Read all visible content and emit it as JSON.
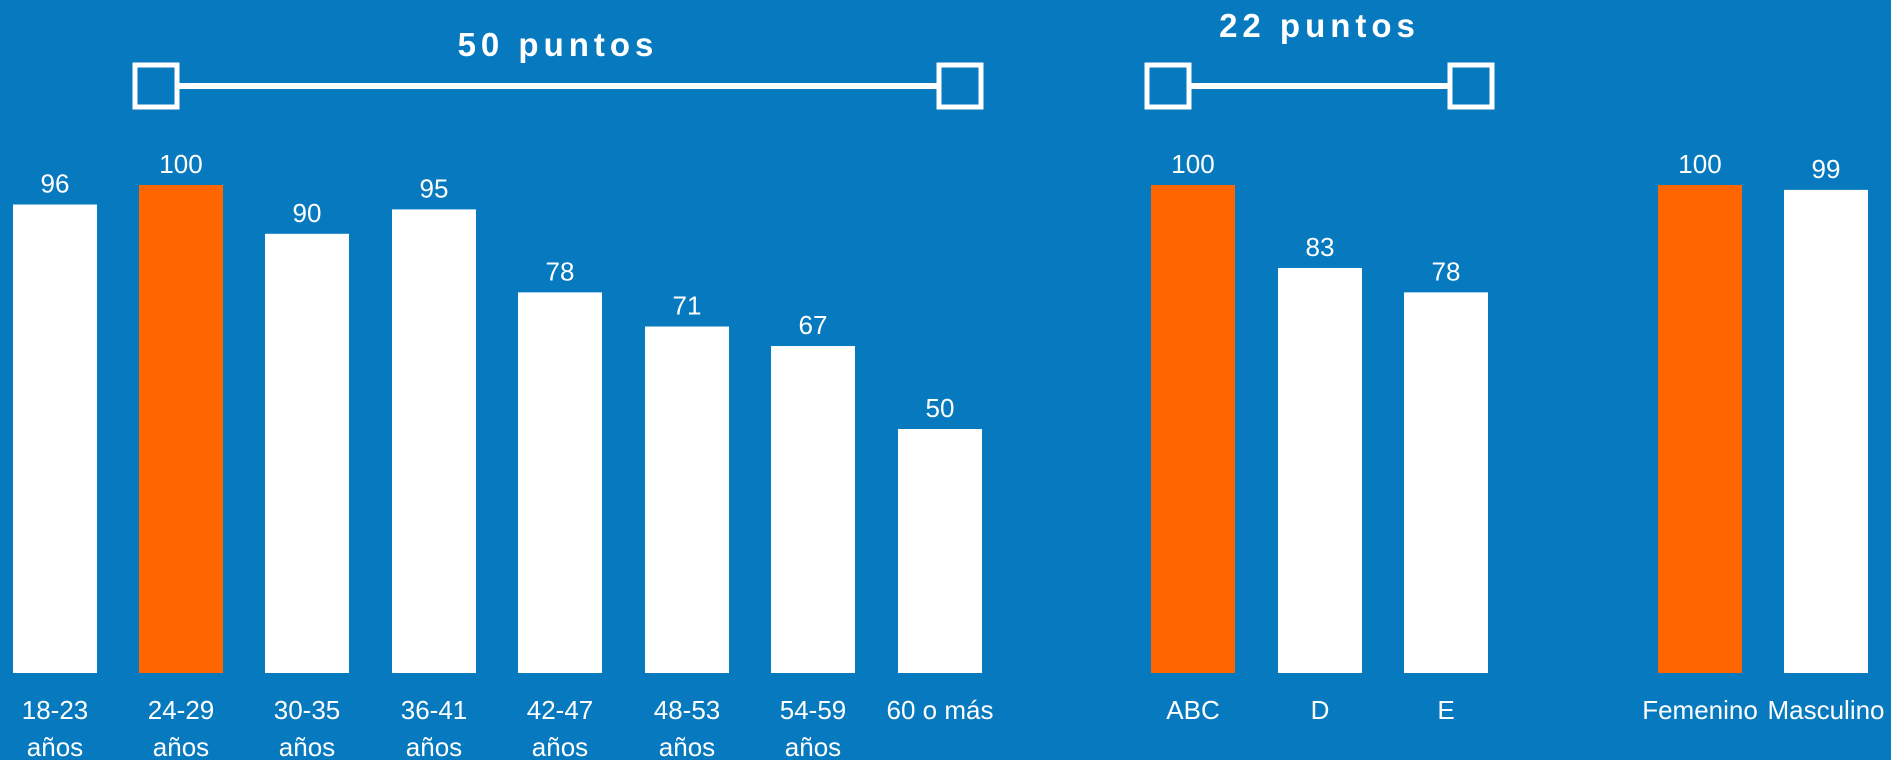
{
  "colors": {
    "background": "#0779BF",
    "bar": "#FFFFFF",
    "highlight": "#FF6600"
  },
  "chart_data": [
    {
      "type": "bar",
      "categories": [
        [
          "18-23",
          "años"
        ],
        [
          "24-29",
          "años"
        ],
        [
          "30-35",
          "años"
        ],
        [
          "36-41",
          "años"
        ],
        [
          "42-47",
          "años"
        ],
        [
          "48-53",
          "años"
        ],
        [
          "54-59",
          "años"
        ],
        [
          "60 o más"
        ]
      ],
      "values": [
        96,
        100,
        90,
        95,
        78,
        71,
        67,
        50
      ],
      "highlight_index": 1,
      "annotation": {
        "text": "50 puntos",
        "from_index": 1,
        "to_index": 7
      },
      "ylim": [
        0,
        100
      ]
    },
    {
      "type": "bar",
      "categories": [
        [
          "ABC"
        ],
        [
          "D"
        ],
        [
          "E"
        ]
      ],
      "values": [
        100,
        83,
        78
      ],
      "highlight_index": 0,
      "annotation": {
        "text": "22 puntos",
        "from_index": 0,
        "to_index": 2
      },
      "ylim": [
        0,
        100
      ]
    },
    {
      "type": "bar",
      "categories": [
        [
          "Femenino"
        ],
        [
          "Masculino"
        ]
      ],
      "values": [
        100,
        99
      ],
      "highlight_index": 0,
      "ylim": [
        0,
        100
      ]
    }
  ]
}
